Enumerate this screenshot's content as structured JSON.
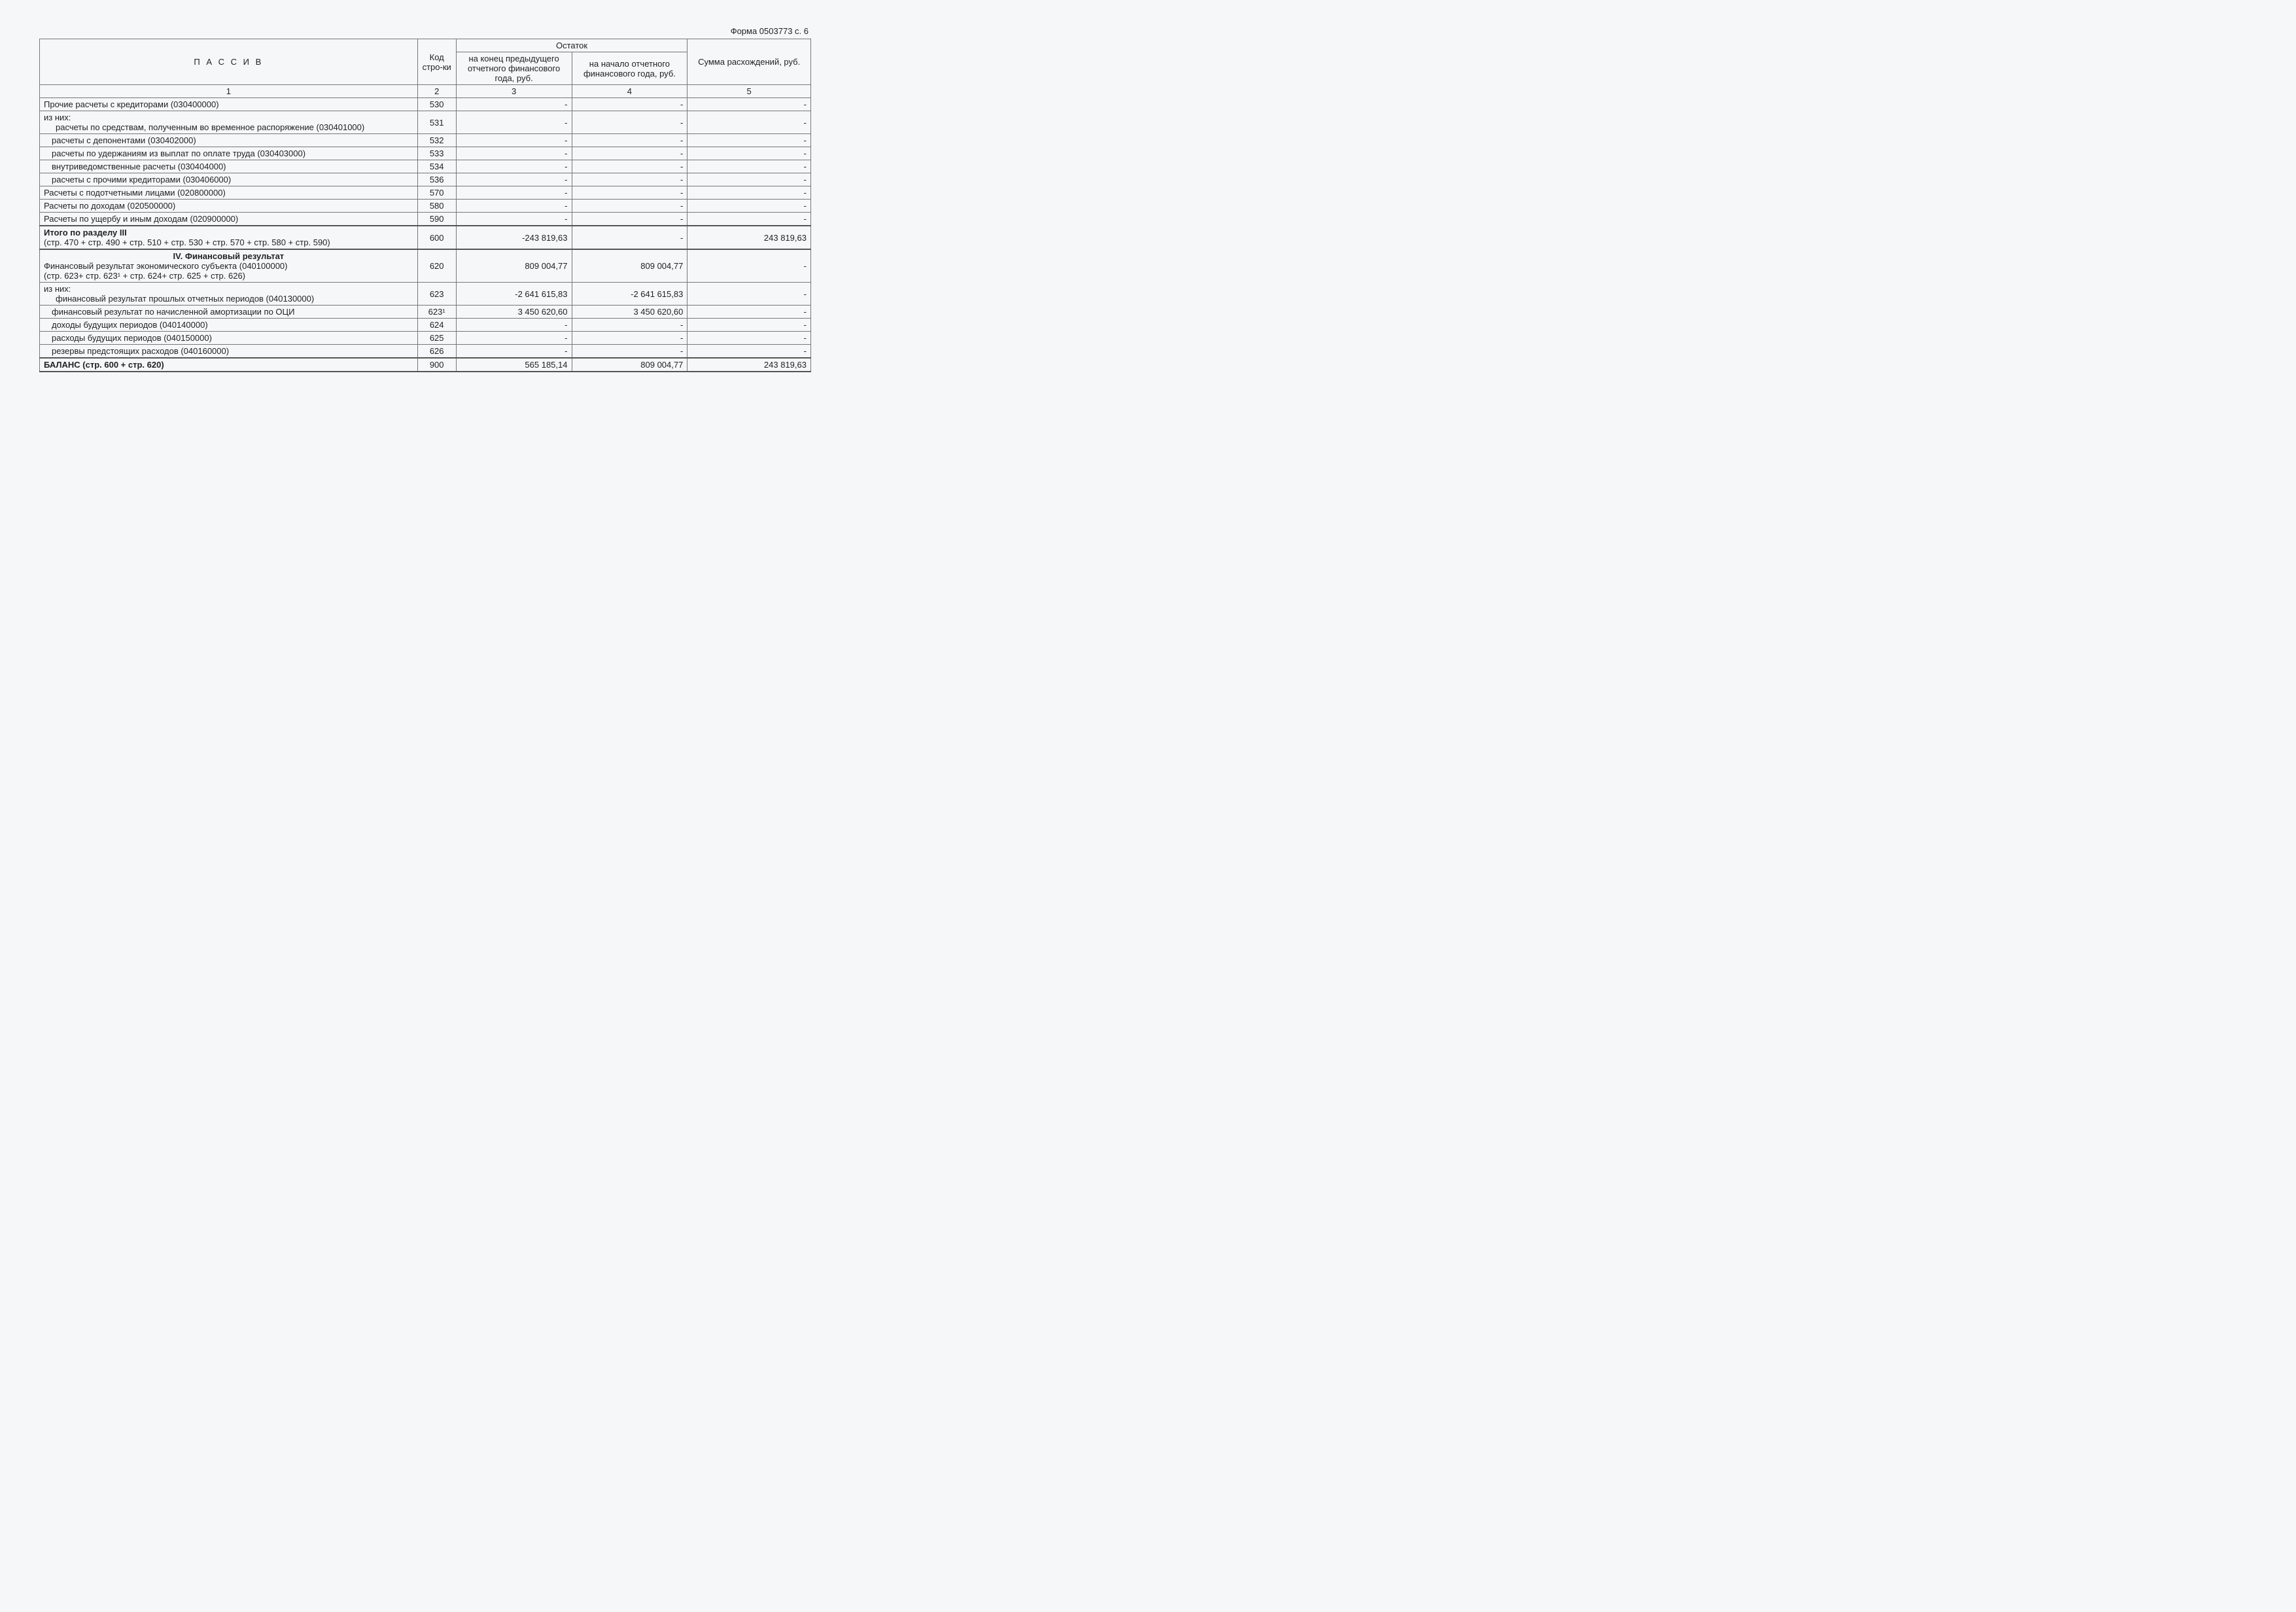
{
  "form_ref": "Форма 0503773 с. 6",
  "headers": {
    "passive": "П А С С И В",
    "code": "Код стро-ки",
    "ostatok": "Остаток",
    "end_prev": "на конец предыдущего отчетного финансового года, руб.",
    "begin_cur": "на начало отчетного финансового года, руб.",
    "diff": "Сумма расхождений, руб.",
    "c1": "1",
    "c2": "2",
    "c3": "3",
    "c4": "4",
    "c5": "5"
  },
  "rows": [
    {
      "label": "Прочие расчеты с кредиторами (030400000)",
      "code": "530",
      "v3": "-",
      "v4": "-",
      "v5": "-",
      "indent": 0,
      "bold": false
    },
    {
      "label": "из них:",
      "sub": "расчеты по средствам, полученным во временное распоряжение (030401000)",
      "code": "531",
      "v3": "-",
      "v4": "-",
      "v5": "-",
      "indent": 1,
      "bold": false,
      "twoLine": true
    },
    {
      "label": "расчеты с депонентами (030402000)",
      "code": "532",
      "v3": "-",
      "v4": "-",
      "v5": "-",
      "indent": 1,
      "bold": false
    },
    {
      "label": "расчеты по удержаниям из выплат по оплате труда (030403000)",
      "code": "533",
      "v3": "-",
      "v4": "-",
      "v5": "-",
      "indent": 1,
      "bold": false
    },
    {
      "label": "внутриведомственные расчеты (030404000)",
      "code": "534",
      "v3": "-",
      "v4": "-",
      "v5": "-",
      "indent": 1,
      "bold": false
    },
    {
      "label": "расчеты с прочими кредиторами (030406000)",
      "code": "536",
      "v3": "-",
      "v4": "-",
      "v5": "-",
      "indent": 1,
      "bold": false
    },
    {
      "label": "Расчеты с подотчетными лицами (020800000)",
      "code": "570",
      "v3": "-",
      "v4": "-",
      "v5": "-",
      "indent": 0,
      "bold": false
    },
    {
      "label": "Расчеты по доходам (020500000)",
      "code": "580",
      "v3": "-",
      "v4": "-",
      "v5": "-",
      "indent": 0,
      "bold": false
    },
    {
      "label": "Расчеты по ущербу и иным доходам (020900000)",
      "code": "590",
      "v3": "-",
      "v4": "-",
      "v5": "-",
      "indent": 0,
      "bold": false
    },
    {
      "label": "Итого по разделу III",
      "sub2": "(стр. 470 + стр. 490 + стр. 510 + стр. 530 + стр. 570 + стр. 580 + стр. 590)",
      "code": "600",
      "v3": "-243 819,63",
      "v4": "-",
      "v5": "243 819,63",
      "indent": 0,
      "bold": true,
      "twoLineStack": true,
      "thick": true
    },
    {
      "section": "IV. Финансовый результат",
      "label": "Финансовый результат экономического субъекта (040100000)",
      "sub2": "(стр. 623+ стр. 623¹ + стр. 624+ стр. 625 + стр. 626)",
      "code": "620",
      "v3": "809 004,77",
      "v4": "809 004,77",
      "v5": "-",
      "indent": 0,
      "bold": false,
      "threeLine": true,
      "thick": true
    },
    {
      "label": "из них:",
      "sub": "финансовый результат прошлых отчетных периодов (040130000)",
      "code": "623",
      "v3": "-2 641 615,83",
      "v4": "-2 641 615,83",
      "v5": "-",
      "indent": 1,
      "bold": false,
      "twoLine": true
    },
    {
      "label": "финансовый результат по начисленной амортизации по ОЦИ",
      "code": "623¹",
      "v3": "3 450 620,60",
      "v4": "3 450 620,60",
      "v5": "-",
      "indent": 1,
      "bold": false
    },
    {
      "label": "доходы будущих периодов (040140000)",
      "code": "624",
      "v3": "-",
      "v4": "-",
      "v5": "-",
      "indent": 1,
      "bold": false
    },
    {
      "label": "расходы будущих периодов (040150000)",
      "code": "625",
      "v3": "-",
      "v4": "-",
      "v5": "-",
      "indent": 1,
      "bold": false
    },
    {
      "label": "резервы предстоящих расходов (040160000)",
      "code": "626",
      "v3": "-",
      "v4": "-",
      "v5": "-",
      "indent": 1,
      "bold": false
    },
    {
      "label": "БАЛАНС (стр. 600 + стр. 620)",
      "code": "900",
      "v3": "565 185,14",
      "v4": "809 004,77",
      "v5": "243 819,63",
      "indent": 0,
      "bold": true,
      "thick": true,
      "thickBottom": true
    }
  ]
}
